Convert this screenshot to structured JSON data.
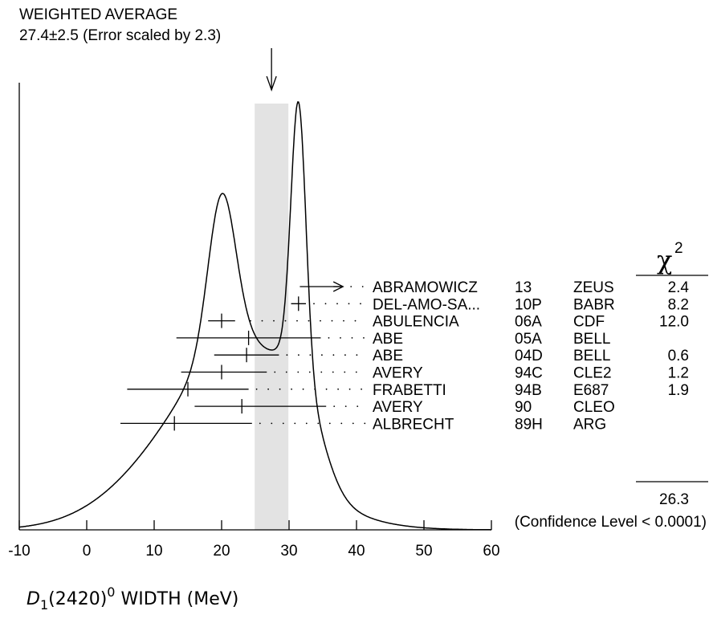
{
  "chart_data": {
    "type": "ideogram",
    "title_line1": "WEIGHTED AVERAGE",
    "title_line2": "27.4±2.5 (Error scaled by 2.3)",
    "average": {
      "value": 27.4,
      "error": 2.5
    },
    "xlim": [
      -10,
      60
    ],
    "xticks": [
      -10,
      0,
      10,
      20,
      30,
      40,
      50,
      60
    ],
    "xlabel_main": "D",
    "xlabel_sub": "1",
    "xlabel_paren": "(2420)",
    "xlabel_sup": "0",
    "xlabel_rest": " WIDTH (MeV)",
    "chi2_symbol": "χ",
    "chi2_sup": "2",
    "measurements": [
      {
        "author": "ABRAMOWICZ",
        "year": "13",
        "exp": "ZEUS",
        "chi2": "2.4",
        "value": 31.6,
        "lo": 31.6,
        "hi": 38.0,
        "arrow": true
      },
      {
        "author": "DEL-AMO-SA...",
        "year": "10P",
        "exp": "BABR",
        "chi2": "8.2",
        "value": 31.4,
        "lo": 30.3,
        "hi": 32.5
      },
      {
        "author": "ABULENCIA",
        "year": "06A",
        "exp": "CDF",
        "chi2": "12.0",
        "value": 20.0,
        "lo": 18.0,
        "hi": 22.0
      },
      {
        "author": "ABE",
        "year": "05A",
        "exp": "BELL",
        "chi2": "",
        "value": 24.0,
        "lo": 13.3,
        "hi": 34.7
      },
      {
        "author": "ABE",
        "year": "04D",
        "exp": "BELL",
        "chi2": "0.6",
        "value": 23.7,
        "lo": 18.9,
        "hi": 28.5
      },
      {
        "author": "AVERY",
        "year": "94C",
        "exp": "CLE2",
        "chi2": "1.2",
        "value": 20.0,
        "lo": 14.0,
        "hi": 26.7
      },
      {
        "author": "FRABETTI",
        "year": "94B",
        "exp": "E687",
        "chi2": "1.9",
        "value": 15.0,
        "lo": 6.0,
        "hi": 24.0
      },
      {
        "author": "AVERY",
        "year": "90",
        "exp": "CLEO",
        "chi2": "",
        "value": 23.0,
        "lo": 16.0,
        "hi": 35.5
      },
      {
        "author": "ALBRECHT",
        "year": "89H",
        "exp": "ARG",
        "chi2": "",
        "value": 13.0,
        "lo": 5.0,
        "hi": 24.5
      }
    ],
    "chi2_total": "26.3",
    "confidence_text": "(Confidence Level < 0.0001)"
  }
}
